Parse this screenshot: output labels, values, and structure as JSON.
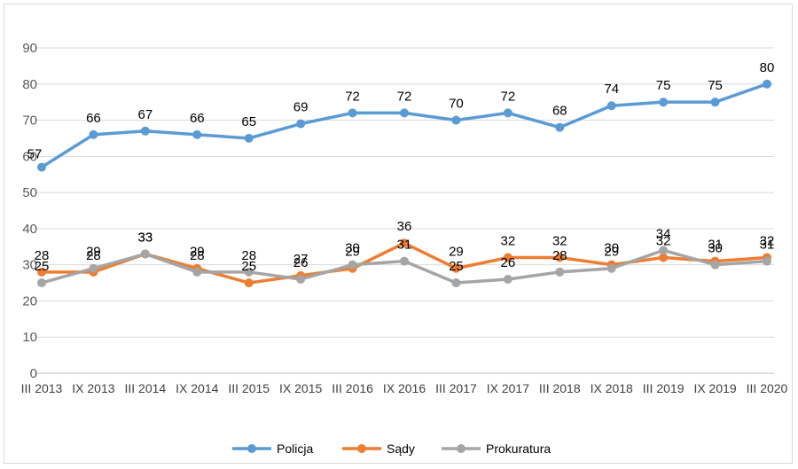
{
  "chart_data": {
    "type": "line",
    "title": "",
    "xlabel": "",
    "ylabel": "",
    "ylim": [
      0,
      90
    ],
    "yticks": [
      0,
      10,
      20,
      30,
      40,
      50,
      60,
      70,
      80,
      90
    ],
    "grid": true,
    "legend_position": "bottom",
    "categories": [
      "III 2013",
      "IX 2013",
      "III 2014",
      "IX 2014",
      "III 2015",
      "IX 2015",
      "III 2016",
      "IX 2016",
      "III 2017",
      "IX 2017",
      "III 2018",
      "IX 2018",
      "III 2019",
      "IX 2019",
      "III 2020"
    ],
    "series": [
      {
        "name": "Policja",
        "color": "#5b9bd5",
        "values": [
          57,
          66,
          67,
          66,
          65,
          69,
          72,
          72,
          70,
          72,
          68,
          74,
          75,
          75,
          80
        ]
      },
      {
        "name": "Sądy",
        "color": "#ed7d31",
        "values": [
          28,
          28,
          33,
          29,
          25,
          27,
          29,
          36,
          29,
          32,
          32,
          30,
          32,
          31,
          32
        ]
      },
      {
        "name": "Prokuratura",
        "color": "#a5a5a5",
        "values": [
          25,
          29,
          33,
          28,
          28,
          26,
          30,
          31,
          25,
          26,
          28,
          29,
          34,
          30,
          31
        ]
      }
    ]
  }
}
